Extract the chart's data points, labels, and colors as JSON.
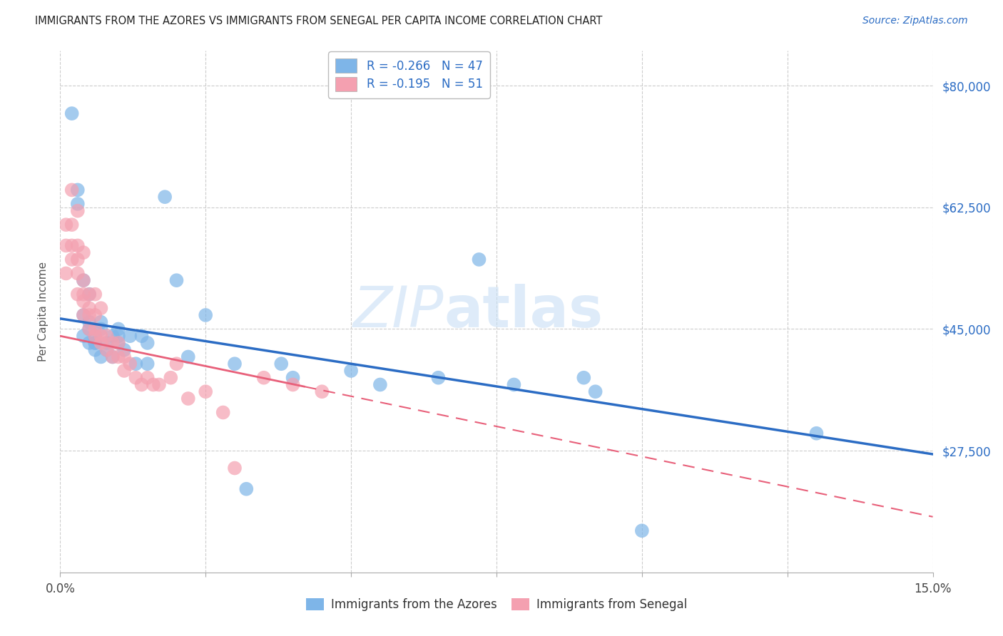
{
  "title": "IMMIGRANTS FROM THE AZORES VS IMMIGRANTS FROM SENEGAL PER CAPITA INCOME CORRELATION CHART",
  "source": "Source: ZipAtlas.com",
  "ylabel": "Per Capita Income",
  "xlim": [
    0.0,
    0.15
  ],
  "ylim": [
    10000,
    85000
  ],
  "yticks": [
    27500,
    45000,
    62500,
    80000
  ],
  "ytick_labels": [
    "$27,500",
    "$45,000",
    "$62,500",
    "$80,000"
  ],
  "xticks": [
    0.0,
    0.025,
    0.05,
    0.075,
    0.1,
    0.125,
    0.15
  ],
  "xtick_labels": [
    "0.0%",
    "",
    "",
    "",
    "",
    "",
    "15.0%"
  ],
  "blue_R": -0.266,
  "blue_N": 47,
  "pink_R": -0.195,
  "pink_N": 51,
  "blue_color": "#7EB5E8",
  "pink_color": "#F4A0B0",
  "blue_line_color": "#2B6CC4",
  "pink_line_color": "#E8607A",
  "watermark_zip": "ZIP",
  "watermark_atlas": "atlas",
  "legend_label_blue": "Immigrants from the Azores",
  "legend_label_pink": "Immigrants from Senegal",
  "azores_x": [
    0.002,
    0.003,
    0.003,
    0.004,
    0.004,
    0.004,
    0.005,
    0.005,
    0.005,
    0.005,
    0.006,
    0.006,
    0.006,
    0.006,
    0.007,
    0.007,
    0.007,
    0.008,
    0.008,
    0.009,
    0.009,
    0.01,
    0.01,
    0.01,
    0.011,
    0.012,
    0.013,
    0.014,
    0.015,
    0.015,
    0.018,
    0.02,
    0.022,
    0.025,
    0.03,
    0.032,
    0.038,
    0.04,
    0.05,
    0.055,
    0.065,
    0.072,
    0.078,
    0.09,
    0.092,
    0.1,
    0.13
  ],
  "azores_y": [
    76000,
    65000,
    63000,
    52000,
    47000,
    44000,
    50000,
    46000,
    45000,
    43000,
    44000,
    43000,
    43000,
    42000,
    46000,
    45000,
    41000,
    43000,
    42000,
    44000,
    41000,
    45000,
    44000,
    43000,
    42000,
    44000,
    40000,
    44000,
    43000,
    40000,
    64000,
    52000,
    41000,
    47000,
    40000,
    22000,
    40000,
    38000,
    39000,
    37000,
    38000,
    55000,
    37000,
    38000,
    36000,
    16000,
    30000
  ],
  "senegal_x": [
    0.001,
    0.001,
    0.001,
    0.002,
    0.002,
    0.002,
    0.002,
    0.003,
    0.003,
    0.003,
    0.003,
    0.003,
    0.004,
    0.004,
    0.004,
    0.004,
    0.004,
    0.005,
    0.005,
    0.005,
    0.005,
    0.006,
    0.006,
    0.006,
    0.006,
    0.007,
    0.007,
    0.007,
    0.008,
    0.008,
    0.009,
    0.009,
    0.01,
    0.01,
    0.011,
    0.011,
    0.012,
    0.013,
    0.014,
    0.015,
    0.016,
    0.017,
    0.019,
    0.02,
    0.022,
    0.025,
    0.028,
    0.03,
    0.035,
    0.04,
    0.045
  ],
  "senegal_y": [
    60000,
    57000,
    53000,
    65000,
    60000,
    57000,
    55000,
    62000,
    57000,
    55000,
    53000,
    50000,
    56000,
    52000,
    50000,
    49000,
    47000,
    50000,
    48000,
    47000,
    45000,
    50000,
    47000,
    45000,
    44000,
    48000,
    44000,
    43000,
    44000,
    42000,
    43000,
    41000,
    43000,
    41000,
    41000,
    39000,
    40000,
    38000,
    37000,
    38000,
    37000,
    37000,
    38000,
    40000,
    35000,
    36000,
    33000,
    25000,
    38000,
    37000,
    36000
  ],
  "blue_line_x": [
    0.0,
    0.15
  ],
  "blue_line_y": [
    46500,
    27000
  ],
  "pink_line_x": [
    0.0,
    0.15
  ],
  "pink_line_y": [
    44000,
    18000
  ]
}
